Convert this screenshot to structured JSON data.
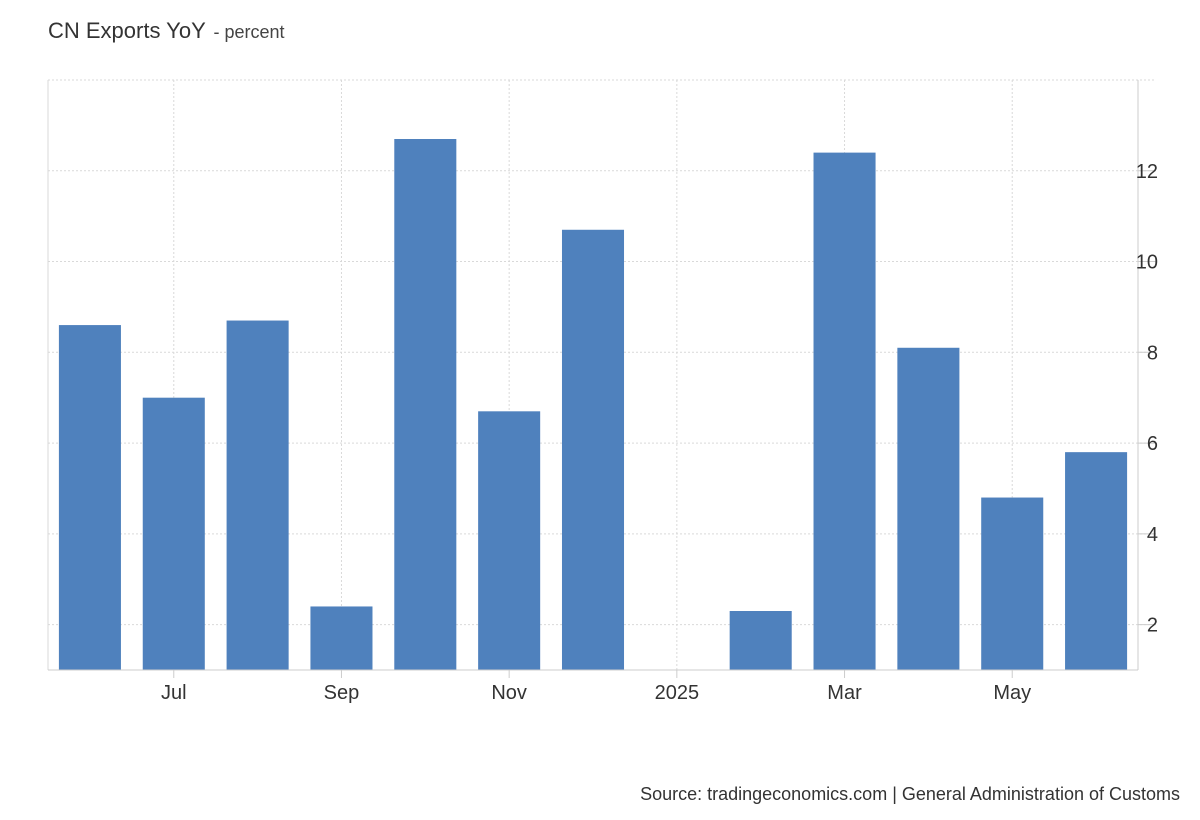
{
  "header": {
    "title": "CN Exports YoY",
    "unit": "- percent"
  },
  "source": "Source: tradingeconomics.com | General Administration of Customs",
  "colors": {
    "bar": "#4f81bd",
    "grid": "#d9d9d9",
    "axis": "#cccccc"
  },
  "chart_data": {
    "type": "bar",
    "title": "CN Exports YoY - percent",
    "categories": [
      "Jun 2024",
      "Jul 2024",
      "Aug 2024",
      "Sep 2024",
      "Oct 2024",
      "Nov 2024",
      "Dec 2024",
      "Jan 2025",
      "Feb 2025",
      "Mar 2025",
      "Apr 2025",
      "May 2025",
      "Jun 2025"
    ],
    "values": [
      8.6,
      7.0,
      8.7,
      2.4,
      12.7,
      6.7,
      10.7,
      null,
      2.3,
      12.4,
      8.1,
      4.8,
      5.8
    ],
    "x_tick_labels": [
      {
        "category": "Jul 2024",
        "label": "Jul"
      },
      {
        "category": "Sep 2024",
        "label": "Sep"
      },
      {
        "category": "Nov 2024",
        "label": "Nov"
      },
      {
        "category": "Jan 2025",
        "label": "2025"
      },
      {
        "category": "Mar 2025",
        "label": "Mar"
      },
      {
        "category": "May 2025",
        "label": "May"
      }
    ],
    "y_ticks": [
      2,
      4,
      6,
      8,
      10,
      12
    ],
    "ylim": [
      1,
      14
    ],
    "y_axis_position": "right",
    "grid": true,
    "legend": "none",
    "xlabel": "",
    "ylabel": ""
  }
}
